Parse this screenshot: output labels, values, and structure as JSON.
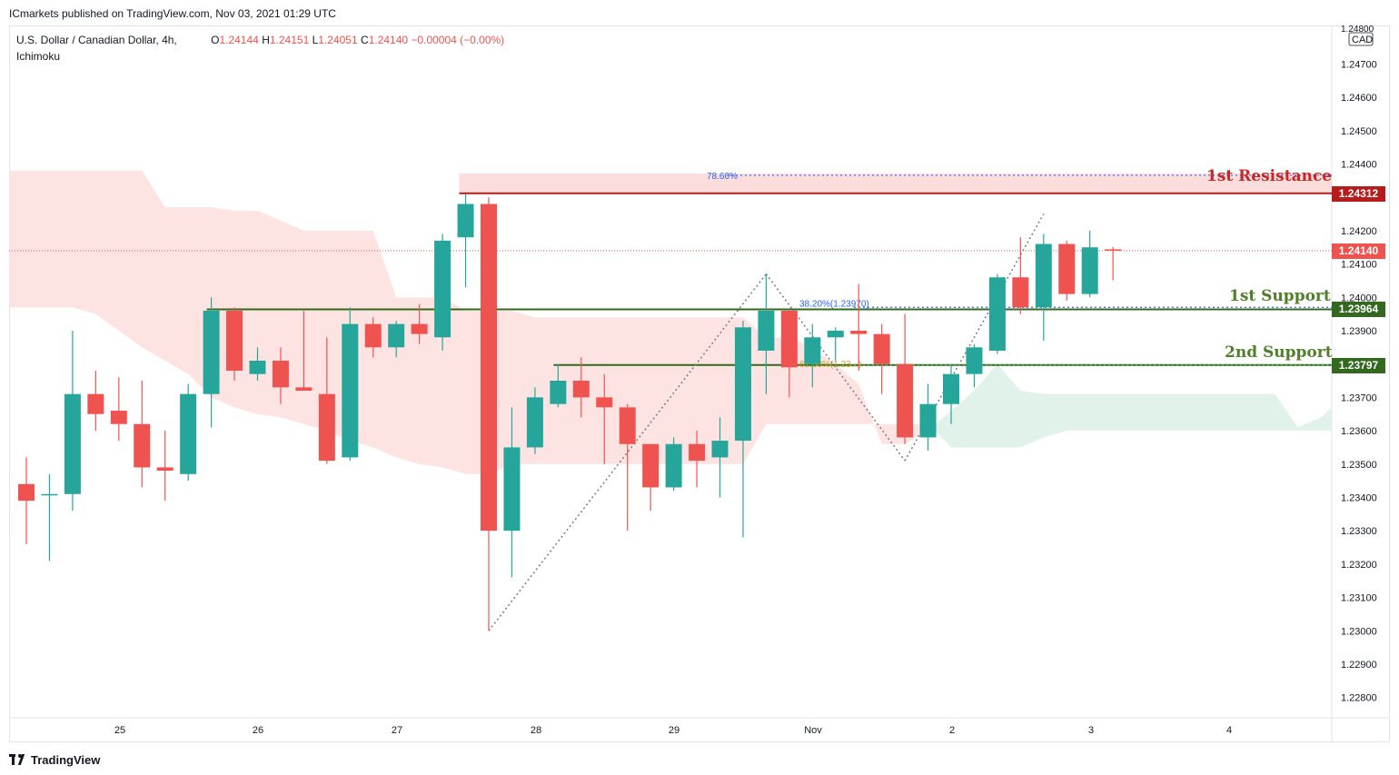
{
  "publisher": "ICmarkets published on TradingView.com, Nov 03, 2021 01:29 UTC",
  "symbol": {
    "name": "U.S. Dollar / Canadian Dollar, 4h,",
    "indicator": "Ichimoku",
    "open_label": "O",
    "open": "1.24144",
    "high_label": "H",
    "high": "1.24151",
    "low_label": "L",
    "low": "1.24051",
    "close_label": "C",
    "close": "1.24140",
    "change": "−0.00004 (−0.00%)"
  },
  "axis": {
    "currency_top": "1.24800",
    "currency": "CAD",
    "y_ticks": [
      "1.24700",
      "1.24600",
      "1.24500",
      "1.24400",
      "1.24200",
      "1.24100",
      "1.24000",
      "1.23900",
      "1.23700",
      "1.23600",
      "1.23500",
      "1.23400",
      "1.23300",
      "1.23200",
      "1.23100",
      "1.23000",
      "1.22900",
      "1.22800"
    ],
    "x_ticks": [
      "25",
      "26",
      "27",
      "28",
      "29",
      "Nov",
      "2",
      "3",
      "4"
    ]
  },
  "levels": {
    "resistance_label": "1st Resistance",
    "resistance_value": "1.24312",
    "support1_label": "1st Support",
    "support1_value": "1.23964",
    "support2_label": "2nd Support",
    "support2_value": "1.23797",
    "current_value": "1.24140"
  },
  "fib": {
    "f786": "78.60%",
    "f382": "38.20%(1.23970)",
    "f618": "61.80%(1.23...)"
  },
  "colors": {
    "up": "#26a69a",
    "down": "#ef5350",
    "resistance": "#b71c1c",
    "support": "#33691e",
    "cloud_red": "#fde4e3",
    "cloud_green": "#e0f2e9",
    "label_support": "#4f7f27",
    "label_resistance": "#c62828"
  },
  "footer": {
    "brand": "TradingView"
  },
  "chart_data": {
    "type": "candlestick",
    "timeframe": "4h",
    "ylim": [
      1.2275,
      1.2481
    ],
    "x_labels": [
      "25",
      "26",
      "27",
      "28",
      "29",
      "Nov",
      "2",
      "3",
      "4"
    ],
    "candles": [
      {
        "o": 1.2344,
        "h": 1.2352,
        "l": 1.2326,
        "c": 1.2339
      },
      {
        "o": 1.2341,
        "h": 1.2347,
        "l": 1.2321,
        "c": 1.2341
      },
      {
        "o": 1.2341,
        "h": 1.239,
        "l": 1.2336,
        "c": 1.2371
      },
      {
        "o": 1.2371,
        "h": 1.2378,
        "l": 1.236,
        "c": 1.2365
      },
      {
        "o": 1.2366,
        "h": 1.2376,
        "l": 1.2357,
        "c": 1.2362
      },
      {
        "o": 1.2362,
        "h": 1.2375,
        "l": 1.2343,
        "c": 1.2349
      },
      {
        "o": 1.2349,
        "h": 1.236,
        "l": 1.2339,
        "c": 1.2348
      },
      {
        "o": 1.2347,
        "h": 1.2374,
        "l": 1.2345,
        "c": 1.2371
      },
      {
        "o": 1.2371,
        "h": 1.24,
        "l": 1.2361,
        "c": 1.2396
      },
      {
        "o": 1.2396,
        "h": 1.2397,
        "l": 1.2375,
        "c": 1.2378
      },
      {
        "o": 1.2377,
        "h": 1.2385,
        "l": 1.2375,
        "c": 1.2381
      },
      {
        "o": 1.2381,
        "h": 1.2385,
        "l": 1.2368,
        "c": 1.2373
      },
      {
        "o": 1.2373,
        "h": 1.2396,
        "l": 1.2372,
        "c": 1.2372
      },
      {
        "o": 1.2371,
        "h": 1.2388,
        "l": 1.235,
        "c": 1.2351
      },
      {
        "o": 1.2352,
        "h": 1.2397,
        "l": 1.2351,
        "c": 1.2392
      },
      {
        "o": 1.2392,
        "h": 1.2394,
        "l": 1.2382,
        "c": 1.2385
      },
      {
        "o": 1.2385,
        "h": 1.2393,
        "l": 1.2382,
        "c": 1.2392
      },
      {
        "o": 1.2392,
        "h": 1.2398,
        "l": 1.2386,
        "c": 1.2389
      },
      {
        "o": 1.2388,
        "h": 1.2419,
        "l": 1.2384,
        "c": 1.2417
      },
      {
        "o": 1.2418,
        "h": 1.2431,
        "l": 1.2403,
        "c": 1.2428
      },
      {
        "o": 1.2428,
        "h": 1.243,
        "l": 1.23,
        "c": 1.233
      },
      {
        "o": 1.233,
        "h": 1.2367,
        "l": 1.2316,
        "c": 1.2355
      },
      {
        "o": 1.2355,
        "h": 1.2373,
        "l": 1.2353,
        "c": 1.237
      },
      {
        "o": 1.2368,
        "h": 1.238,
        "l": 1.2367,
        "c": 1.2375
      },
      {
        "o": 1.2375,
        "h": 1.2382,
        "l": 1.2364,
        "c": 1.237
      },
      {
        "o": 1.237,
        "h": 1.2377,
        "l": 1.235,
        "c": 1.2367
      },
      {
        "o": 1.2367,
        "h": 1.2368,
        "l": 1.233,
        "c": 1.2356
      },
      {
        "o": 1.2356,
        "h": 1.2356,
        "l": 1.2336,
        "c": 1.2343
      },
      {
        "o": 1.2343,
        "h": 1.2358,
        "l": 1.2342,
        "c": 1.2356
      },
      {
        "o": 1.2356,
        "h": 1.236,
        "l": 1.2343,
        "c": 1.2351
      },
      {
        "o": 1.2352,
        "h": 1.2364,
        "l": 1.234,
        "c": 1.2357
      },
      {
        "o": 1.2357,
        "h": 1.2393,
        "l": 1.2328,
        "c": 1.2391
      },
      {
        "o": 1.2384,
        "h": 1.2407,
        "l": 1.2371,
        "c": 1.2396
      },
      {
        "o": 1.2396,
        "h": 1.2396,
        "l": 1.237,
        "c": 1.2379
      },
      {
        "o": 1.238,
        "h": 1.2392,
        "l": 1.2373,
        "c": 1.2388
      },
      {
        "o": 1.2388,
        "h": 1.2391,
        "l": 1.2381,
        "c": 1.239
      },
      {
        "o": 1.239,
        "h": 1.2404,
        "l": 1.2378,
        "c": 1.2389
      },
      {
        "o": 1.2389,
        "h": 1.2392,
        "l": 1.2371,
        "c": 1.238
      },
      {
        "o": 1.238,
        "h": 1.2395,
        "l": 1.2356,
        "c": 1.2358
      },
      {
        "o": 1.2358,
        "h": 1.2374,
        "l": 1.2354,
        "c": 1.2368
      },
      {
        "o": 1.2368,
        "h": 1.238,
        "l": 1.2362,
        "c": 1.2377
      },
      {
        "o": 1.2377,
        "h": 1.2386,
        "l": 1.2373,
        "c": 1.2385
      },
      {
        "o": 1.2384,
        "h": 1.2407,
        "l": 1.2383,
        "c": 1.2406
      },
      {
        "o": 1.2406,
        "h": 1.2418,
        "l": 1.2395,
        "c": 1.2397
      },
      {
        "o": 1.2397,
        "h": 1.2419,
        "l": 1.2387,
        "c": 1.2416
      },
      {
        "o": 1.2416,
        "h": 1.2417,
        "l": 1.2399,
        "c": 1.2401
      },
      {
        "o": 1.2401,
        "h": 1.242,
        "l": 1.24,
        "c": 1.2415
      },
      {
        "o": 1.24144,
        "h": 1.24151,
        "l": 1.24051,
        "c": 1.2414
      }
    ],
    "cloud_top": [
      1.2438,
      1.2438,
      1.2438,
      1.2438,
      1.2438,
      1.2438,
      1.2438,
      1.2438,
      1.2427,
      1.2427,
      1.2427,
      1.2426,
      1.2426,
      1.2423,
      1.242,
      1.242,
      1.242,
      1.242,
      1.24,
      1.24,
      1.24,
      1.2396,
      1.2396,
      1.2396,
      1.2394,
      1.2394,
      1.2394,
      1.2394,
      1.2394,
      1.2394,
      1.2394,
      1.2394,
      1.2394,
      1.2394,
      1.2388,
      1.2388,
      1.2385,
      1.238,
      1.2374,
      1.2356,
      1.2356,
      1.236,
      1.2366,
      1.2372,
      1.238,
      1.2372,
      1.2371,
      1.2371,
      1.2371,
      1.2371,
      1.2371,
      1.2371,
      1.2371,
      1.2371,
      1.2371,
      1.2371,
      1.2371,
      1.2361,
      1.2364,
      1.2367,
      1.2371
    ],
    "cloud_bottom": [
      1.2395,
      1.2397,
      1.2397,
      1.2397,
      1.2397,
      1.2395,
      1.239,
      1.2385,
      1.2381,
      1.2377,
      1.237,
      1.2367,
      1.2365,
      1.2364,
      1.2362,
      1.236,
      1.2357,
      1.2355,
      1.2352,
      1.235,
      1.2349,
      1.2347,
      1.2347,
      1.235,
      1.235,
      1.235,
      1.235,
      1.235,
      1.235,
      1.235,
      1.235,
      1.235,
      1.235,
      1.235,
      1.2362,
      1.2362,
      1.2362,
      1.2362,
      1.2362,
      1.2362,
      1.2362,
      1.2362,
      1.2355,
      1.2355,
      1.2355,
      1.2355,
      1.2358,
      1.236,
      1.236,
      1.236,
      1.236,
      1.236,
      1.236,
      1.236,
      1.236,
      1.236,
      1.236,
      1.236,
      1.236,
      1.236,
      1.236
    ],
    "cloud_start_index": -2,
    "resistance": 1.24312,
    "support_1": 1.23964,
    "support_2": 1.23797,
    "last_price": 1.2414,
    "fib_levels": [
      {
        "label": "78.60%",
        "value": 1.24366
      },
      {
        "label": "38.20%(1.23970)",
        "value": 1.2397
      },
      {
        "label": "61.80%",
        "value": 1.23797
      }
    ],
    "swing_lines": [
      {
        "from_index": 20,
        "from": 1.23,
        "to_index": 32,
        "to": 1.2407
      },
      {
        "from_index": 32,
        "from": 1.2407,
        "to_index": 38,
        "to": 1.2351
      },
      {
        "from_index": 38,
        "from": 1.2351,
        "to_index": 44,
        "to": 1.2425
      }
    ]
  }
}
